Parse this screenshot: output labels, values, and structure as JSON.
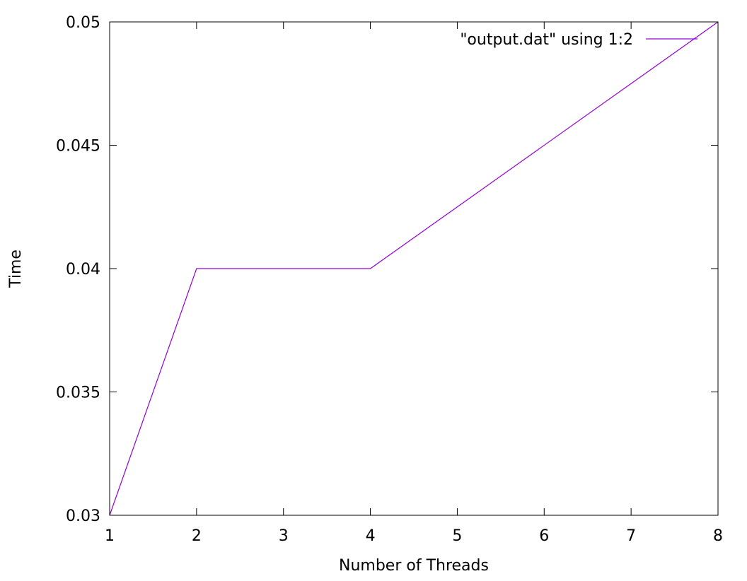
{
  "chart_data": {
    "type": "line",
    "title": "",
    "xlabel": "Number of Threads",
    "ylabel": "Time",
    "xlim": [
      1,
      8
    ],
    "ylim": [
      0.03,
      0.05
    ],
    "x_ticks": [
      "1",
      "2",
      "3",
      "4",
      "5",
      "6",
      "7",
      "8"
    ],
    "y_ticks": [
      "0.03",
      "0.035",
      "0.04",
      "0.045",
      "0.05"
    ],
    "grid": false,
    "legend_position": "top-right",
    "series": [
      {
        "name": "\"output.dat\" using 1:2",
        "color": "#9400d3",
        "x": [
          1,
          2,
          4,
          8
        ],
        "y": [
          0.03,
          0.04,
          0.04,
          0.05
        ]
      }
    ]
  }
}
